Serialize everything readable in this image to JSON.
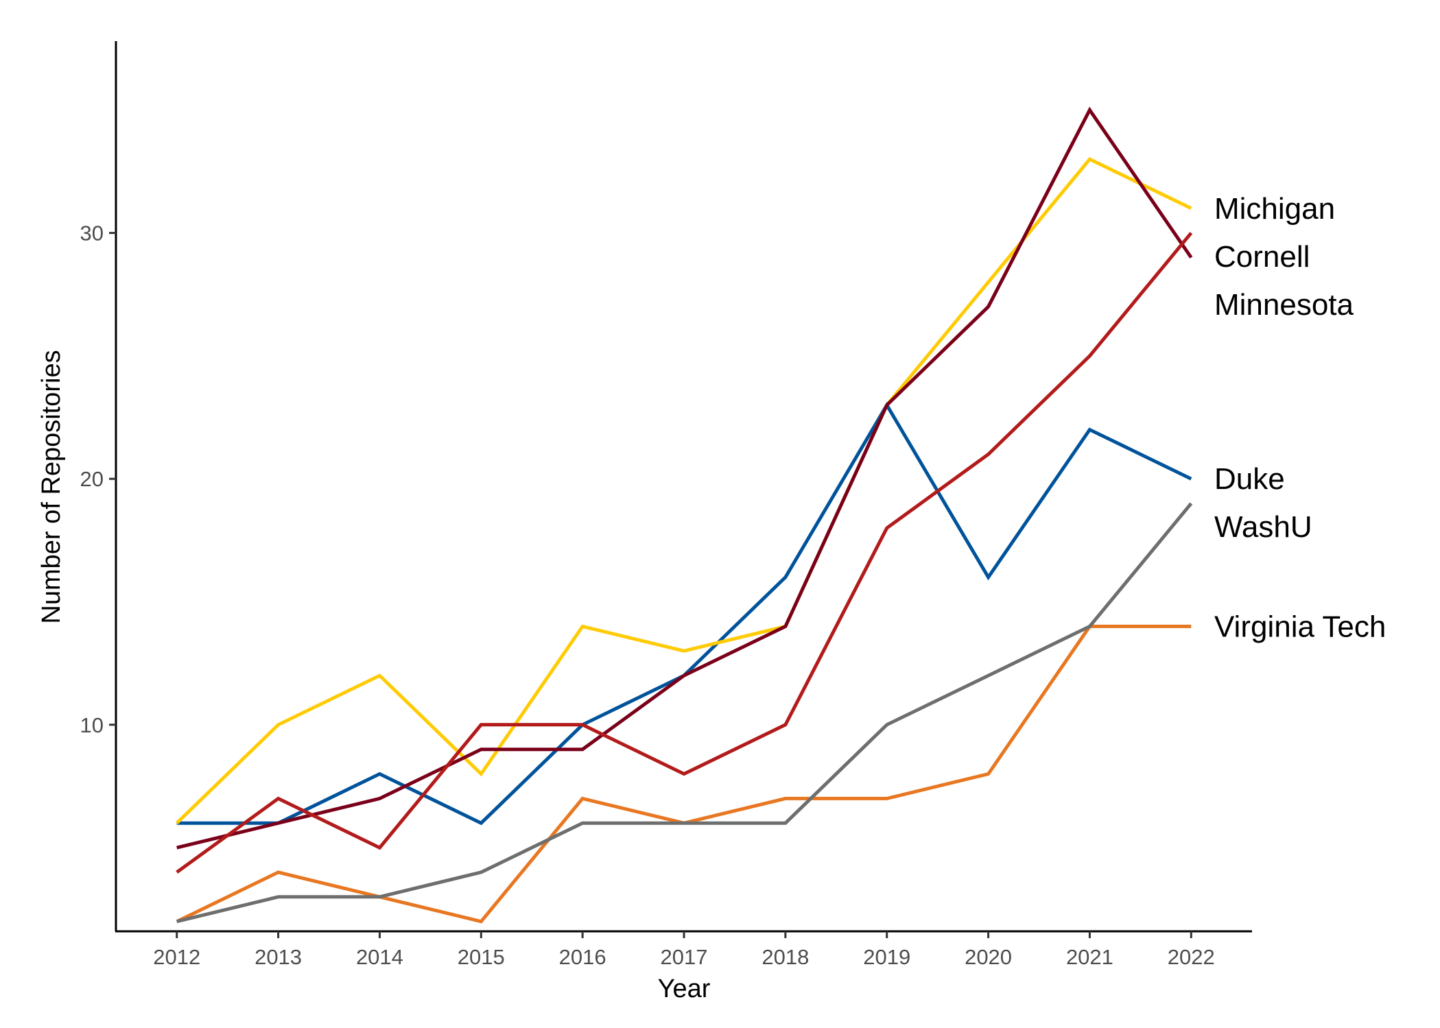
{
  "chart_data": {
    "type": "line",
    "title": "",
    "xlabel": "Year",
    "ylabel": "Number of Repositories",
    "x": [
      2012,
      2013,
      2014,
      2015,
      2016,
      2017,
      2018,
      2019,
      2020,
      2021,
      2022
    ],
    "xlim": [
      2011.4,
      2022.6
    ],
    "ylim": [
      1.6,
      37.8
    ],
    "yticks": [
      10,
      20,
      30
    ],
    "grid": false,
    "legend": "direct-labels-right",
    "series": [
      {
        "name": "Virginia Tech",
        "color": "#E87722",
        "values": [
          2,
          4,
          3,
          2,
          7,
          6,
          7,
          7,
          8,
          14,
          14
        ]
      },
      {
        "name": "WashU",
        "color": "#6D6F6E",
        "values": [
          2,
          3,
          3,
          4,
          6,
          6,
          6,
          10,
          12,
          14,
          19
        ]
      },
      {
        "name": "Duke",
        "color": "#00539B",
        "values": [
          6,
          6,
          8,
          6,
          10,
          12,
          16,
          23,
          16,
          22,
          20
        ]
      },
      {
        "name": "Michigan",
        "color": "#FFCB05",
        "values": [
          6,
          10,
          12,
          8,
          14,
          13,
          14,
          23,
          28,
          33,
          31
        ]
      },
      {
        "name": "Minnesota",
        "color": "#7A0019",
        "values": [
          5,
          6,
          7,
          9,
          9,
          12,
          14,
          23,
          27,
          35,
          29
        ]
      },
      {
        "name": "Cornell",
        "color": "#B31B1B",
        "values": [
          4,
          7,
          5,
          10,
          10,
          8,
          10,
          18,
          21,
          25,
          30
        ]
      }
    ],
    "labels": [
      {
        "text": "Michigan",
        "series": "Michigan"
      },
      {
        "text": "Cornell",
        "series": "Cornell"
      },
      {
        "text": "Minnesota",
        "series": "Minnesota"
      },
      {
        "text": "Duke",
        "series": "Duke"
      },
      {
        "text": "WashU",
        "series": "WashU"
      },
      {
        "text": "Virginia Tech",
        "series": "Virginia Tech"
      }
    ]
  }
}
